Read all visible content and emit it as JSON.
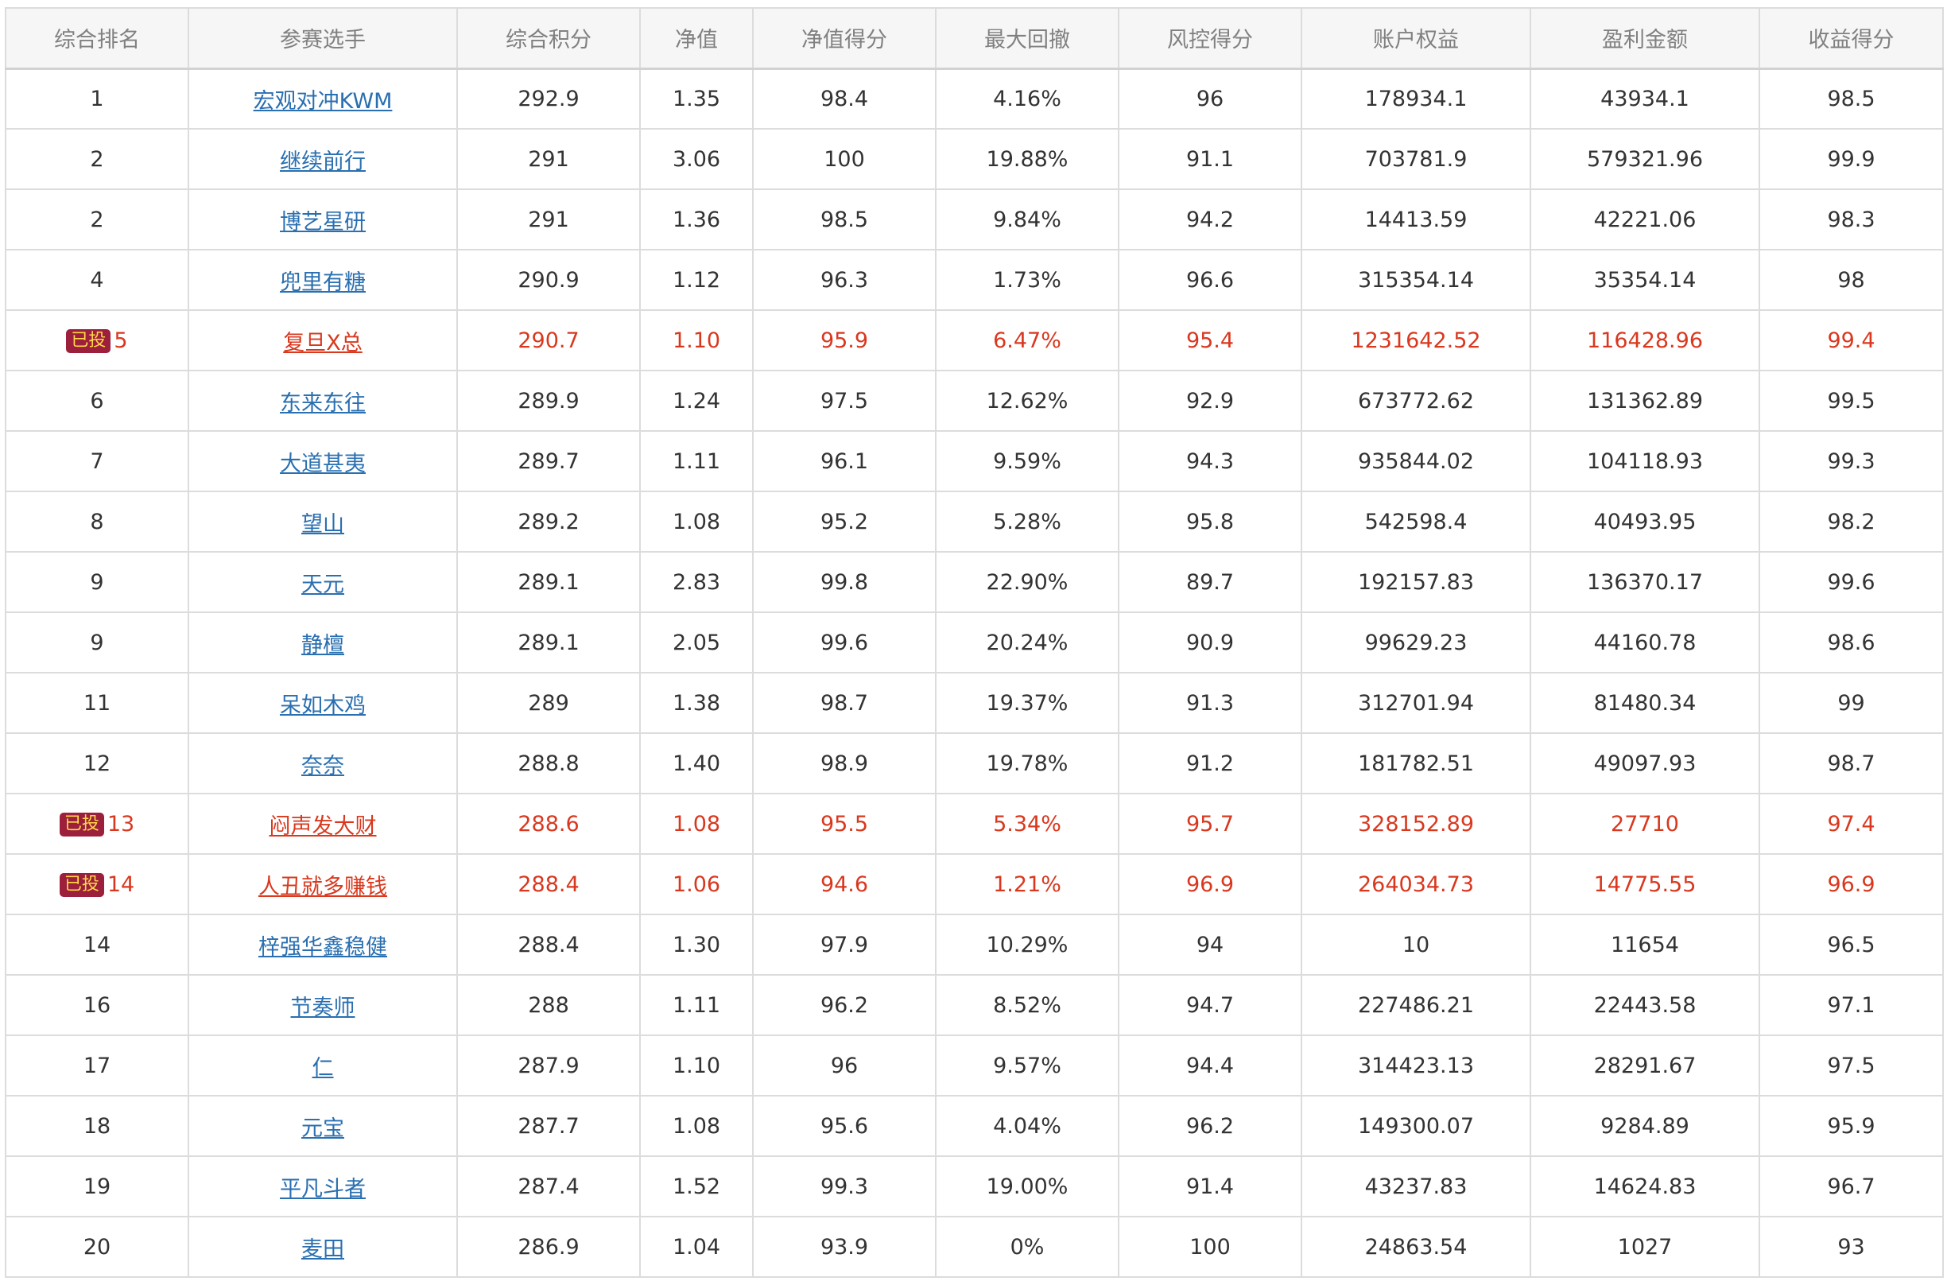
{
  "headers": [
    "综合排名",
    "参赛选手",
    "综合积分",
    "净值",
    "净值得分",
    "最大回撤",
    "风控得分",
    "账户权益",
    "盈利金额",
    "收益得分"
  ],
  "colors": {
    "link": "#2a6fb0",
    "highlight": "#d9381e",
    "badge_bg": "#9c1f3c",
    "badge_text": "#ffd84a"
  },
  "rows": [
    {
      "rank": "1",
      "badge": "",
      "name": "宏观对冲KWM",
      "score": "292.9",
      "nav": "1.35",
      "nav_score": "98.4",
      "max_dd": "4.16%",
      "risk_score": "96",
      "equity": "178934.1",
      "profit": "43934.1",
      "return_score": "98.5"
    },
    {
      "rank": "2",
      "badge": "",
      "name": "继续前行",
      "score": "291",
      "nav": "3.06",
      "nav_score": "100",
      "max_dd": "19.88%",
      "risk_score": "91.1",
      "equity": "703781.9",
      "profit": "579321.96",
      "return_score": "99.9"
    },
    {
      "rank": "2",
      "badge": "",
      "name": "博艺星研",
      "score": "291",
      "nav": "1.36",
      "nav_score": "98.5",
      "max_dd": "9.84%",
      "risk_score": "94.2",
      "equity": "14413.59",
      "profit": "42221.06",
      "return_score": "98.3"
    },
    {
      "rank": "4",
      "badge": "",
      "name": "兜里有糖",
      "score": "290.9",
      "nav": "1.12",
      "nav_score": "96.3",
      "max_dd": "1.73%",
      "risk_score": "96.6",
      "equity": "315354.14",
      "profit": "35354.14",
      "return_score": "98"
    },
    {
      "rank": "5",
      "badge": "已投",
      "name": "复旦X总",
      "score": "290.7",
      "nav": "1.10",
      "nav_score": "95.9",
      "max_dd": "6.47%",
      "risk_score": "95.4",
      "equity": "1231642.52",
      "profit": "116428.96",
      "return_score": "99.4"
    },
    {
      "rank": "6",
      "badge": "",
      "name": "东来东往",
      "score": "289.9",
      "nav": "1.24",
      "nav_score": "97.5",
      "max_dd": "12.62%",
      "risk_score": "92.9",
      "equity": "673772.62",
      "profit": "131362.89",
      "return_score": "99.5"
    },
    {
      "rank": "7",
      "badge": "",
      "name": "大道甚夷",
      "score": "289.7",
      "nav": "1.11",
      "nav_score": "96.1",
      "max_dd": "9.59%",
      "risk_score": "94.3",
      "equity": "935844.02",
      "profit": "104118.93",
      "return_score": "99.3"
    },
    {
      "rank": "8",
      "badge": "",
      "name": "望山",
      "score": "289.2",
      "nav": "1.08",
      "nav_score": "95.2",
      "max_dd": "5.28%",
      "risk_score": "95.8",
      "equity": "542598.4",
      "profit": "40493.95",
      "return_score": "98.2"
    },
    {
      "rank": "9",
      "badge": "",
      "name": "天元",
      "score": "289.1",
      "nav": "2.83",
      "nav_score": "99.8",
      "max_dd": "22.90%",
      "risk_score": "89.7",
      "equity": "192157.83",
      "profit": "136370.17",
      "return_score": "99.6"
    },
    {
      "rank": "9",
      "badge": "",
      "name": "静檀",
      "score": "289.1",
      "nav": "2.05",
      "nav_score": "99.6",
      "max_dd": "20.24%",
      "risk_score": "90.9",
      "equity": "99629.23",
      "profit": "44160.78",
      "return_score": "98.6"
    },
    {
      "rank": "11",
      "badge": "",
      "name": "呆如木鸡",
      "score": "289",
      "nav": "1.38",
      "nav_score": "98.7",
      "max_dd": "19.37%",
      "risk_score": "91.3",
      "equity": "312701.94",
      "profit": "81480.34",
      "return_score": "99"
    },
    {
      "rank": "12",
      "badge": "",
      "name": "奈奈",
      "score": "288.8",
      "nav": "1.40",
      "nav_score": "98.9",
      "max_dd": "19.78%",
      "risk_score": "91.2",
      "equity": "181782.51",
      "profit": "49097.93",
      "return_score": "98.7"
    },
    {
      "rank": "13",
      "badge": "已投",
      "name": "闷声发大财",
      "score": "288.6",
      "nav": "1.08",
      "nav_score": "95.5",
      "max_dd": "5.34%",
      "risk_score": "95.7",
      "equity": "328152.89",
      "profit": "27710",
      "return_score": "97.4"
    },
    {
      "rank": "14",
      "badge": "已投",
      "name": "人丑就多赚钱",
      "score": "288.4",
      "nav": "1.06",
      "nav_score": "94.6",
      "max_dd": "1.21%",
      "risk_score": "96.9",
      "equity": "264034.73",
      "profit": "14775.55",
      "return_score": "96.9"
    },
    {
      "rank": "14",
      "badge": "",
      "name": "梓强华鑫稳健",
      "score": "288.4",
      "nav": "1.30",
      "nav_score": "97.9",
      "max_dd": "10.29%",
      "risk_score": "94",
      "equity": "10",
      "profit": "11654",
      "return_score": "96.5"
    },
    {
      "rank": "16",
      "badge": "",
      "name": "节奏师",
      "score": "288",
      "nav": "1.11",
      "nav_score": "96.2",
      "max_dd": "8.52%",
      "risk_score": "94.7",
      "equity": "227486.21",
      "profit": "22443.58",
      "return_score": "97.1"
    },
    {
      "rank": "17",
      "badge": "",
      "name": "仁",
      "score": "287.9",
      "nav": "1.10",
      "nav_score": "96",
      "max_dd": "9.57%",
      "risk_score": "94.4",
      "equity": "314423.13",
      "profit": "28291.67",
      "return_score": "97.5"
    },
    {
      "rank": "18",
      "badge": "",
      "name": "元宝",
      "score": "287.7",
      "nav": "1.08",
      "nav_score": "95.6",
      "max_dd": "4.04%",
      "risk_score": "96.2",
      "equity": "149300.07",
      "profit": "9284.89",
      "return_score": "95.9"
    },
    {
      "rank": "19",
      "badge": "",
      "name": "平凡斗者",
      "score": "287.4",
      "nav": "1.52",
      "nav_score": "99.3",
      "max_dd": "19.00%",
      "risk_score": "91.4",
      "equity": "43237.83",
      "profit": "14624.83",
      "return_score": "96.7"
    },
    {
      "rank": "20",
      "badge": "",
      "name": "麦田",
      "score": "286.9",
      "nav": "1.04",
      "nav_score": "93.9",
      "max_dd": "0%",
      "risk_score": "100",
      "equity": "24863.54",
      "profit": "1027",
      "return_score": "93"
    }
  ]
}
